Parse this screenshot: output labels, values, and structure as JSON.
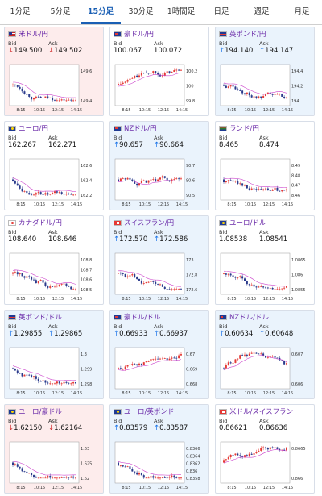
{
  "tabs": [
    {
      "label": "1分足",
      "active": false
    },
    {
      "label": "5分足",
      "active": false
    },
    {
      "label": "15分足",
      "active": true
    },
    {
      "label": "30分足",
      "active": false
    },
    {
      "label": "1時間足",
      "active": false
    },
    {
      "label": "日足",
      "active": false
    },
    {
      "label": "週足",
      "active": false
    },
    {
      "label": "月足",
      "active": false
    }
  ],
  "labels": {
    "bid": "Bid",
    "ask": "Ask"
  },
  "colors": {
    "up": "#1a73e8",
    "down": "#d32f2f",
    "name": "#6a2aa8",
    "ma": "#cc44cc"
  },
  "pairs": [
    {
      "name": "米ドル/円",
      "flag": "us",
      "dir": "down",
      "bid": "149.500",
      "ask": "149.502",
      "x_ticks": [
        "8:15",
        "10:15",
        "12:15",
        "14:15"
      ],
      "y_ticks": [
        "149.6",
        "149.4"
      ],
      "trend": "down"
    },
    {
      "name": "豪ドル/円",
      "flag": "au",
      "dir": "flat",
      "bid": "100.067",
      "ask": "100.072",
      "x_ticks": [
        "8:15",
        "10:15",
        "12:15",
        "14:15"
      ],
      "y_ticks": [
        "100.2",
        "100",
        "99.8"
      ],
      "trend": "up"
    },
    {
      "name": "英ポンド/円",
      "flag": "gb",
      "dir": "up",
      "bid": "194.140",
      "ask": "194.147",
      "x_ticks": [
        "8:15",
        "10:15",
        "12:15",
        "14:15"
      ],
      "y_ticks": [
        "194.4",
        "194.2",
        "194"
      ],
      "trend": "down"
    },
    {
      "name": "ユーロ/円",
      "flag": "eu",
      "dir": "flat",
      "bid": "162.267",
      "ask": "162.271",
      "x_ticks": [
        "8:15",
        "10:15",
        "12:15",
        "14:15"
      ],
      "y_ticks": [
        "162.6",
        "162.4",
        "162.2"
      ],
      "trend": "down"
    },
    {
      "name": "NZドル/円",
      "flag": "nz",
      "dir": "up",
      "bid": "90.657",
      "ask": "90.664",
      "x_ticks": [
        "8:15",
        "10:15",
        "12:15",
        "14:15"
      ],
      "y_ticks": [
        "90.7",
        "90.6",
        "90.5"
      ],
      "trend": "flat"
    },
    {
      "name": "ランド/円",
      "flag": "za",
      "dir": "flat",
      "bid": "8.465",
      "ask": "8.474",
      "x_ticks": [
        "8:15",
        "10:15",
        "12:15",
        "14:15"
      ],
      "y_ticks": [
        "8.49",
        "8.48",
        "8.47",
        "8.46"
      ],
      "trend": "down"
    },
    {
      "name": "カナダドル/円",
      "flag": "ca",
      "dir": "flat",
      "bid": "108.640",
      "ask": "108.646",
      "x_ticks": [
        "8:15",
        "10:15",
        "12:15",
        "14:15"
      ],
      "y_ticks": [
        "108.8",
        "108.7",
        "108.6",
        "108.5"
      ],
      "trend": "down"
    },
    {
      "name": "スイスフラン/円",
      "flag": "ch",
      "dir": "up",
      "bid": "172.570",
      "ask": "172.586",
      "x_ticks": [
        "8:15",
        "10:15",
        "12:15",
        "14:15"
      ],
      "y_ticks": [
        "173",
        "172.8",
        "172.6"
      ],
      "trend": "down"
    },
    {
      "name": "ユーロ/ドル",
      "flag": "eu",
      "dir": "flat",
      "bid": "1.08538",
      "ask": "1.08541",
      "x_ticks": [
        "8:15",
        "10:15",
        "12:15",
        "14:15"
      ],
      "y_ticks": [
        "1.0865",
        "1.086",
        "1.0855"
      ],
      "trend": "down"
    },
    {
      "name": "英ポンド/ドル",
      "flag": "gb",
      "dir": "up",
      "bid": "1.29855",
      "ask": "1.29865",
      "x_ticks": [
        "8:15",
        "10:15",
        "12:15",
        "14:15"
      ],
      "y_ticks": [
        "1.3",
        "1.299",
        "1.298"
      ],
      "trend": "down"
    },
    {
      "name": "豪ドル/ドル",
      "flag": "au",
      "dir": "up",
      "bid": "0.66933",
      "ask": "0.66937",
      "x_ticks": [
        "8:15",
        "10:15",
        "12:15",
        "14:15"
      ],
      "y_ticks": [
        "0.67",
        "0.669",
        "0.668"
      ],
      "trend": "up"
    },
    {
      "name": "NZドル/ドル",
      "flag": "nz",
      "dir": "up",
      "bid": "0.60634",
      "ask": "0.60648",
      "x_ticks": [
        "8:15",
        "10:15",
        "12:15",
        "14:15"
      ],
      "y_ticks": [
        "0.607",
        "0.606"
      ],
      "trend": "updown"
    },
    {
      "name": "ユーロ/豪ドル",
      "flag": "eu",
      "dir": "down",
      "bid": "1.62150",
      "ask": "1.62164",
      "x_ticks": [
        "8:15",
        "10:15",
        "12:15",
        "14:15"
      ],
      "y_ticks": [
        "1.63",
        "1.625",
        "1.62"
      ],
      "trend": "down"
    },
    {
      "name": "ユーロ/英ポンド",
      "flag": "eu",
      "dir": "up",
      "bid": "0.83579",
      "ask": "0.83587",
      "x_ticks": [
        "8:15",
        "10:15",
        "12:15",
        "14:15"
      ],
      "y_ticks": [
        "0.8366",
        "0.8364",
        "0.8362",
        "0.836",
        "0.8358"
      ],
      "trend": "down"
    },
    {
      "name": "米ドル/スイスフラン",
      "flag": "ch",
      "dir": "flat",
      "bid": "0.86621",
      "ask": "0.86636",
      "x_ticks": [
        "8:15",
        "10:15",
        "12:15",
        "14:15"
      ],
      "y_ticks": [
        "0.8665",
        "0.866"
      ],
      "trend": "up"
    }
  ]
}
